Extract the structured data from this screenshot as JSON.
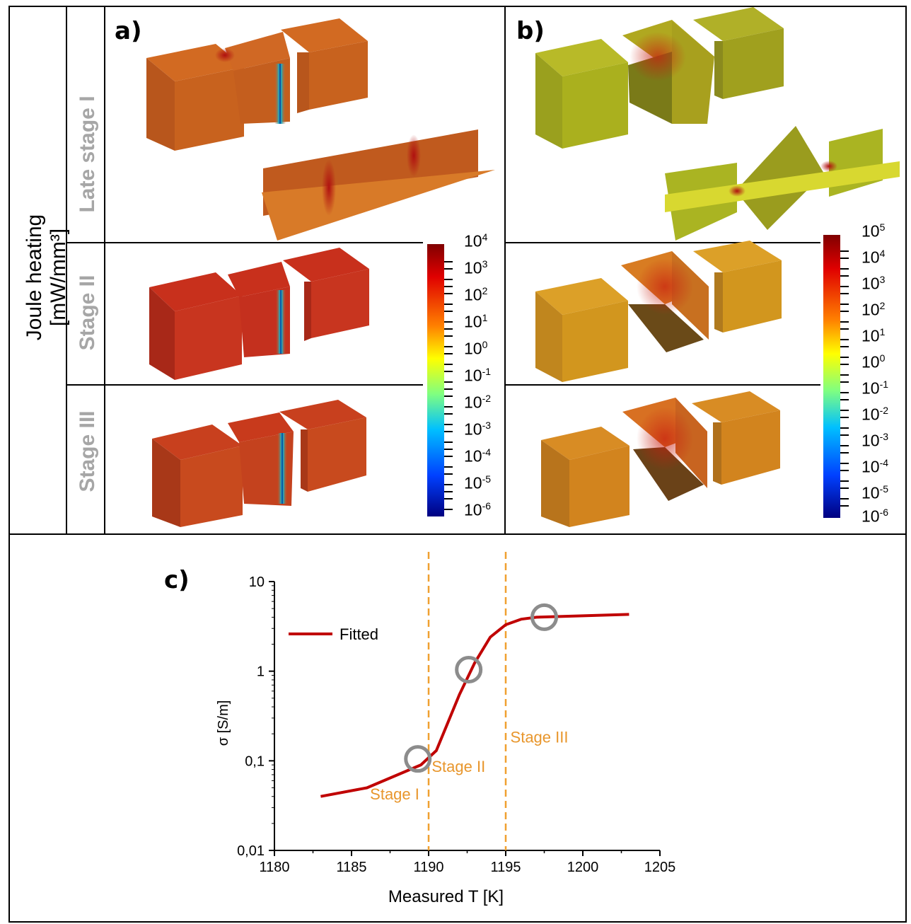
{
  "figure": {
    "y_axis_title": "Joule heating [mW/mm³]",
    "panel_a_label": "a)",
    "panel_b_label": "b)",
    "panel_c_label": "c)",
    "row_labels": [
      "Late stage I",
      "Stage II",
      "Stage III"
    ],
    "colorbar_a": {
      "labels": [
        {
          "base": "10",
          "exp": "4"
        },
        {
          "base": "10",
          "exp": "3"
        },
        {
          "base": "10",
          "exp": "2"
        },
        {
          "base": "10",
          "exp": "1"
        },
        {
          "base": "10",
          "exp": "0"
        },
        {
          "base": "10",
          "exp": "-1"
        },
        {
          "base": "10",
          "exp": "-2"
        },
        {
          "base": "10",
          "exp": "-3"
        },
        {
          "base": "10",
          "exp": "-4"
        },
        {
          "base": "10",
          "exp": "-5"
        },
        {
          "base": "10",
          "exp": "-6"
        }
      ]
    },
    "colorbar_b": {
      "labels": [
        {
          "base": "10",
          "exp": "5"
        },
        {
          "base": "10",
          "exp": "4"
        },
        {
          "base": "10",
          "exp": "3"
        },
        {
          "base": "10",
          "exp": "2"
        },
        {
          "base": "10",
          "exp": "1"
        },
        {
          "base": "10",
          "exp": "0"
        },
        {
          "base": "10",
          "exp": "-1"
        },
        {
          "base": "10",
          "exp": "-2"
        },
        {
          "base": "10",
          "exp": "-3"
        },
        {
          "base": "10",
          "exp": "-4"
        },
        {
          "base": "10",
          "exp": "-5"
        },
        {
          "base": "10",
          "exp": "-6"
        }
      ]
    },
    "colors": {
      "cube_a_late": "#c8621e",
      "cube_a_stage2": "#c8351f",
      "cube_a_stage3": "#c84a1e",
      "cube_b_late": "#aab01e",
      "cube_b_stage2": "#d2961e",
      "cube_b_stage3": "#d2841e",
      "fitted_line": "#c00000",
      "stage_dash": "#f0a030",
      "stage_text": "#e8962c",
      "marker": "#8c8c8c"
    }
  },
  "chart_data": {
    "type": "line",
    "title": "",
    "xlabel": "Measured T [K]",
    "ylabel": "σ [S/m]",
    "xlim": [
      1180,
      1205
    ],
    "ylim": [
      0.01,
      10
    ],
    "yscale": "log",
    "x_ticks": [
      "1180",
      "1185",
      "1190",
      "1195",
      "1200",
      "1205"
    ],
    "y_ticks": [
      "10",
      "1",
      "0,1",
      "0,01"
    ],
    "legend": {
      "position": "top-left",
      "entries": [
        "Fitted"
      ]
    },
    "series": [
      {
        "name": "Fitted",
        "x": [
          1183,
          1186,
          1189.5,
          1190.5,
          1192,
          1193,
          1194,
          1195,
          1196,
          1197,
          1200,
          1203
        ],
        "y": [
          0.04,
          0.05,
          0.09,
          0.13,
          0.55,
          1.25,
          2.4,
          3.3,
          3.8,
          4.0,
          4.15,
          4.3
        ]
      }
    ],
    "stage_boundaries": [
      1190,
      1195
    ],
    "stage_labels": [
      {
        "text": "Stage I",
        "x": 1186.2,
        "y": 0.037
      },
      {
        "text": "Stage II",
        "x": 1190.2,
        "y": 0.075
      },
      {
        "text": "Stage III",
        "x": 1195.3,
        "y": 0.16
      }
    ],
    "markers": [
      {
        "x": 1189.3,
        "y": 0.105
      },
      {
        "x": 1192.6,
        "y": 1.04
      },
      {
        "x": 1197.5,
        "y": 4.0
      }
    ]
  }
}
